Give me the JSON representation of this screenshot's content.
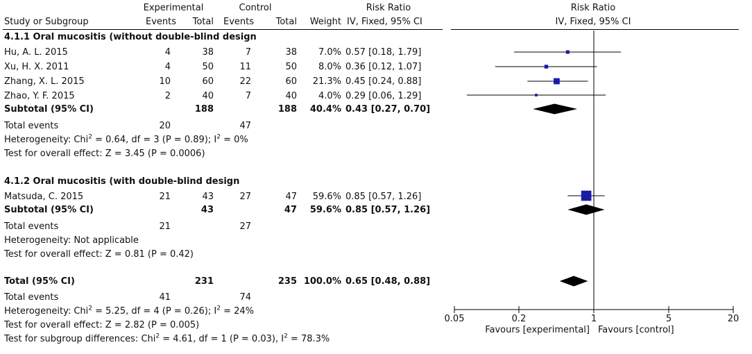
{
  "header": {
    "experimental": "Experimental",
    "control": "Control",
    "risk_ratio_table": "Risk Ratio",
    "risk_ratio_plot": "Risk Ratio",
    "study_col": "Study or Subgroup",
    "events": "Events",
    "total": "Total",
    "weight": "Weight",
    "method_table": "IV, Fixed, 95% CI",
    "method_plot": "IV, Fixed, 95% CI"
  },
  "subgroup1": {
    "title": "4.1.1 Oral mucositis (without double-blind design",
    "studies": [
      {
        "name": "Hu, A. L. 2015",
        "exp_events": "4",
        "exp_total": "38",
        "ctl_events": "7",
        "ctl_total": "38",
        "weight": "7.0%",
        "rr": "0.57 [0.18, 1.79]"
      },
      {
        "name": "Xu, H. X. 2011",
        "exp_events": "4",
        "exp_total": "50",
        "ctl_events": "11",
        "ctl_total": "50",
        "weight": "8.0%",
        "rr": "0.36 [0.12, 1.07]"
      },
      {
        "name": "Zhang, X. L. 2015",
        "exp_events": "10",
        "exp_total": "60",
        "ctl_events": "22",
        "ctl_total": "60",
        "weight": "21.3%",
        "rr": "0.45 [0.24, 0.88]"
      },
      {
        "name": "Zhao, Y. F. 2015",
        "exp_events": "2",
        "exp_total": "40",
        "ctl_events": "7",
        "ctl_total": "40",
        "weight": "4.0%",
        "rr": "0.29 [0.06, 1.29]"
      }
    ],
    "subtotal": {
      "label": "Subtotal (95% CI)",
      "exp_total": "188",
      "ctl_total": "188",
      "weight": "40.4%",
      "rr": "0.43 [0.27, 0.70]"
    },
    "total_events": {
      "label": "Total events",
      "exp": "20",
      "ctl": "47"
    },
    "heterogeneity_pre": "Heterogeneity: Chi",
    "heterogeneity_mid": " = 0.64, df = 3 (P = 0.89); I",
    "heterogeneity_post": " = 0%",
    "overall": "Test for overall effect: Z = 3.45 (P = 0.0006)"
  },
  "subgroup2": {
    "title": "4.1.2 Oral mucositis (with double-blind design",
    "studies": [
      {
        "name": "Matsuda, C. 2015",
        "exp_events": "21",
        "exp_total": "43",
        "ctl_events": "27",
        "ctl_total": "47",
        "weight": "59.6%",
        "rr": "0.85 [0.57, 1.26]"
      }
    ],
    "subtotal": {
      "label": "Subtotal (95% CI)",
      "exp_total": "43",
      "ctl_total": "47",
      "weight": "59.6%",
      "rr": "0.85 [0.57, 1.26]"
    },
    "total_events": {
      "label": "Total events",
      "exp": "21",
      "ctl": "27"
    },
    "heterogeneity": "Heterogeneity: Not applicable",
    "overall": "Test for overall effect: Z = 0.81 (P = 0.42)"
  },
  "total": {
    "label": "Total (95% CI)",
    "exp_total": "231",
    "ctl_total": "235",
    "weight": "100.0%",
    "rr": "0.65 [0.48, 0.88]",
    "total_events": {
      "label": "Total events",
      "exp": "41",
      "ctl": "74"
    },
    "heterogeneity_pre": "Heterogeneity: Chi",
    "heterogeneity_mid": " = 5.25, df = 4 (P = 0.26); I",
    "heterogeneity_post": " = 24%",
    "overall": "Test for overall effect: Z = 2.82 (P = 0.005)",
    "subgroup_pre": "Test for subgroup differences: Chi",
    "subgroup_mid": " = 4.61, df = 1 (P = 0.03), I",
    "subgroup_post": " = 78.3%"
  },
  "sup2": "2",
  "chart_data": {
    "type": "forest",
    "scale": "log",
    "xlim": [
      0.05,
      20
    ],
    "ticks": [
      0.05,
      0.2,
      1,
      5,
      20
    ],
    "tick_labels": [
      "0.05",
      "0.2",
      "1",
      "5",
      "20"
    ],
    "reference_line": 1,
    "xlabel_left": "Favours [experimental]",
    "xlabel_right": "Favours [control]",
    "studies": [
      {
        "name": "Hu, A. L. 2015",
        "rr": 0.57,
        "lo": 0.18,
        "hi": 1.79,
        "weight": 7.0
      },
      {
        "name": "Xu, H. X. 2011",
        "rr": 0.36,
        "lo": 0.12,
        "hi": 1.07,
        "weight": 8.0
      },
      {
        "name": "Zhang, X. L. 2015",
        "rr": 0.45,
        "lo": 0.24,
        "hi": 0.88,
        "weight": 21.3
      },
      {
        "name": "Zhao, Y. F. 2015",
        "rr": 0.29,
        "lo": 0.06,
        "hi": 1.29,
        "weight": 4.0
      },
      {
        "name": "Matsuda, C. 2015",
        "rr": 0.85,
        "lo": 0.57,
        "hi": 1.26,
        "weight": 59.6
      }
    ],
    "diamonds": [
      {
        "name": "Subtotal 4.1.1",
        "rr": 0.43,
        "lo": 0.27,
        "hi": 0.7
      },
      {
        "name": "Subtotal 4.1.2",
        "rr": 0.85,
        "lo": 0.57,
        "hi": 1.26
      },
      {
        "name": "Total",
        "rr": 0.65,
        "lo": 0.48,
        "hi": 0.88
      }
    ]
  }
}
